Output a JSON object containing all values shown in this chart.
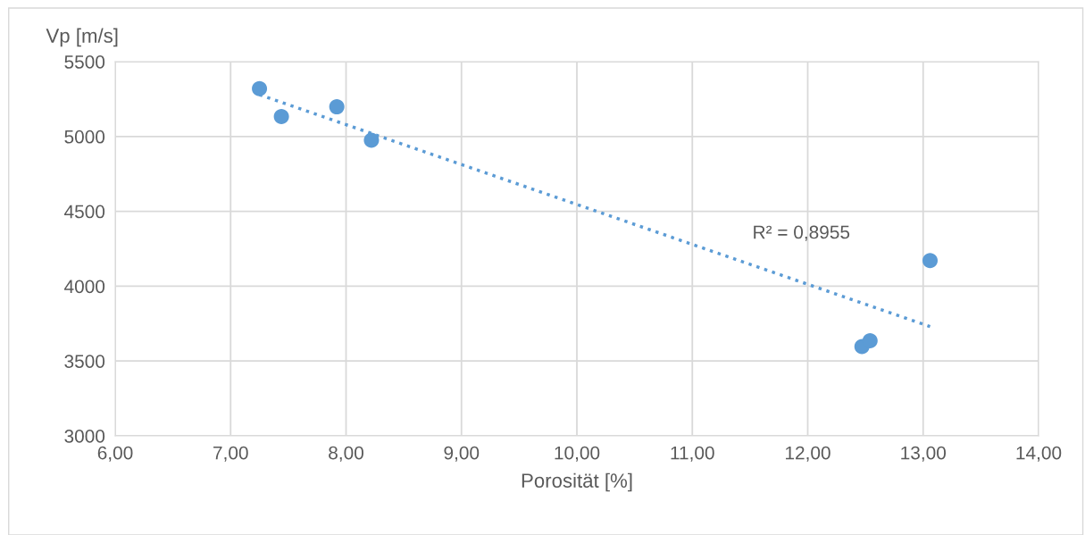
{
  "chart_data": {
    "type": "scatter",
    "ylabel": "Vp [m/s]",
    "xlabel": "Porosität [%]",
    "series": [
      {
        "color": "#5b9bd5",
        "x": [
          7.25,
          7.44,
          7.92,
          8.22,
          12.47,
          12.54,
          13.06
        ],
        "values": [
          5320,
          5133,
          5198,
          4975,
          3596,
          3636,
          4171
        ],
        "marker": "circle"
      },
      {
        "type": "line",
        "color": "#5b9bd5",
        "x": [
          7.25,
          13.06
        ],
        "values": [
          5279,
          3730
        ],
        "line_style": "dotted",
        "marker": "none"
      }
    ],
    "annotations": [
      "R² = 0,8955"
    ],
    "xlim": [
      6,
      14
    ],
    "ylim": [
      3000,
      5500
    ],
    "xticks": [
      {
        "value": 6,
        "label": "6,00"
      },
      {
        "value": 7,
        "label": "7,00"
      },
      {
        "value": 8,
        "label": "8,00"
      },
      {
        "value": 9,
        "label": "9,00"
      },
      {
        "value": 10,
        "label": "10,00"
      },
      {
        "value": 11,
        "label": "11,00"
      },
      {
        "value": 12,
        "label": "12,00"
      },
      {
        "value": 13,
        "label": "13,00"
      },
      {
        "value": 14,
        "label": "14,00"
      }
    ],
    "yticks": [
      3000,
      3500,
      4000,
      4500,
      5000,
      5500
    ],
    "grid": true,
    "legend": false
  }
}
